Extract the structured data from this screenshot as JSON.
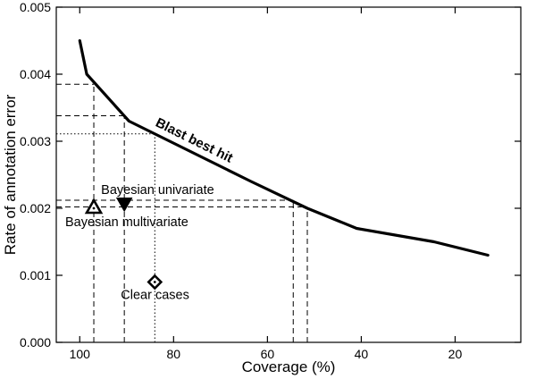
{
  "chart_data": {
    "type": "line",
    "title": "",
    "xlabel": "Coverage (%)",
    "ylabel": "Rate of annotation error",
    "xlim": [
      105,
      6
    ],
    "ylim": [
      0,
      0.005
    ],
    "x_reversed": true,
    "grid": false,
    "xticks": [
      100,
      80,
      60,
      40,
      20
    ],
    "xtick_labels": [
      "100",
      "80",
      "60",
      "40",
      "20"
    ],
    "yticks": [
      0,
      0.001,
      0.002,
      0.003,
      0.004,
      0.005
    ],
    "ytick_labels": [
      "0.000",
      "0.001",
      "0.002",
      "0.003",
      "0.004",
      "0.005"
    ],
    "series": [
      {
        "name": "Blast best hit",
        "x": [
          100,
          98.5,
          89.5,
          63.5,
          51.5,
          41,
          24.5,
          13
        ],
        "y": [
          0.0045,
          0.004,
          0.0033,
          0.0024,
          0.002,
          0.0017,
          0.0015,
          0.0013
        ]
      }
    ],
    "markers": [
      {
        "name": "Bayesian multivariate",
        "shape": "triangle-up",
        "x": 97,
        "y": 0.002
      },
      {
        "name": "Bayesian univariate",
        "shape": "triangle-down",
        "x": 90.5,
        "y": 0.00207
      },
      {
        "name": "Clear cases",
        "shape": "diamond",
        "x": 84,
        "y": 0.0009
      }
    ],
    "reference_lines": [
      {
        "style": "dashed",
        "x": 97,
        "y": 0.00385
      },
      {
        "style": "dashed",
        "x": 90.5,
        "y": 0.00338
      },
      {
        "style": "dotted",
        "x": 84,
        "y": 0.00311
      },
      {
        "style": "dashed",
        "x": 54.5,
        "y": 0.00212
      },
      {
        "style": "dashed",
        "x": 51.5,
        "y": 0.00202
      }
    ]
  }
}
